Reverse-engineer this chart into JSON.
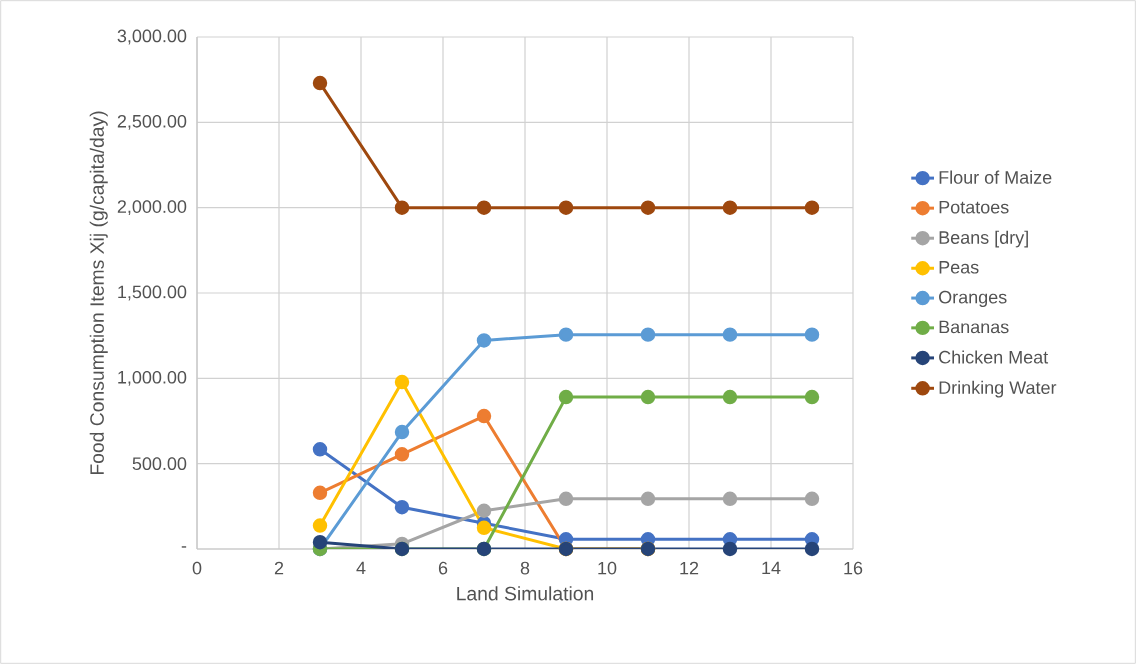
{
  "chart_data": {
    "type": "line",
    "xlabel": "Land Simulation",
    "ylabel": "Food Consumption Items Xij (g/capita/day)",
    "x": [
      3,
      5,
      7,
      9,
      11,
      13,
      15
    ],
    "series": [
      {
        "name": "Flour of Maize",
        "color": "#4472c4",
        "values": [
          584,
          245,
          151,
          57,
          57,
          57,
          57
        ]
      },
      {
        "name": "Potatoes",
        "color": "#ed7d31",
        "values": [
          329,
          555,
          779,
          0,
          0,
          null,
          null
        ]
      },
      {
        "name": "Beans [dry]",
        "color": "#a5a5a5",
        "values": [
          0,
          30,
          224,
          294,
          294,
          294,
          294
        ]
      },
      {
        "name": "Peas",
        "color": "#ffc000",
        "values": [
          137,
          978,
          124,
          0,
          0,
          null,
          null
        ]
      },
      {
        "name": "Oranges",
        "color": "#5b9bd5",
        "values": [
          0,
          685,
          1222,
          1256,
          1256,
          1256,
          1256
        ]
      },
      {
        "name": "Bananas",
        "color": "#70ad47",
        "values": [
          0,
          0,
          0,
          890,
          890,
          890,
          890
        ]
      },
      {
        "name": "Chicken Meat",
        "color": "#264478",
        "values": [
          40,
          0,
          0,
          0,
          0,
          0,
          0
        ]
      },
      {
        "name": "Drinking Water",
        "color": "#9e480e",
        "values": [
          2730,
          2000,
          2000,
          2000,
          2000,
          2000,
          2000
        ]
      }
    ],
    "xlim": [
      0,
      16
    ],
    "xticks": [
      0,
      2,
      4,
      6,
      8,
      10,
      12,
      14,
      16
    ],
    "ylim": [
      0,
      3000
    ],
    "yticks": [
      {
        "value": 0,
        "label": "-"
      },
      {
        "value": 500,
        "label": "500.00"
      },
      {
        "value": 1000,
        "label": "1,000.00"
      },
      {
        "value": 1500,
        "label": "1,500.00"
      },
      {
        "value": 2000,
        "label": "2,000.00"
      },
      {
        "value": 2500,
        "label": "2,500.00"
      },
      {
        "value": 3000,
        "label": "3,000.00"
      }
    ],
    "grid": true,
    "legend": "right",
    "marker": "circle",
    "line_style": "solid"
  }
}
